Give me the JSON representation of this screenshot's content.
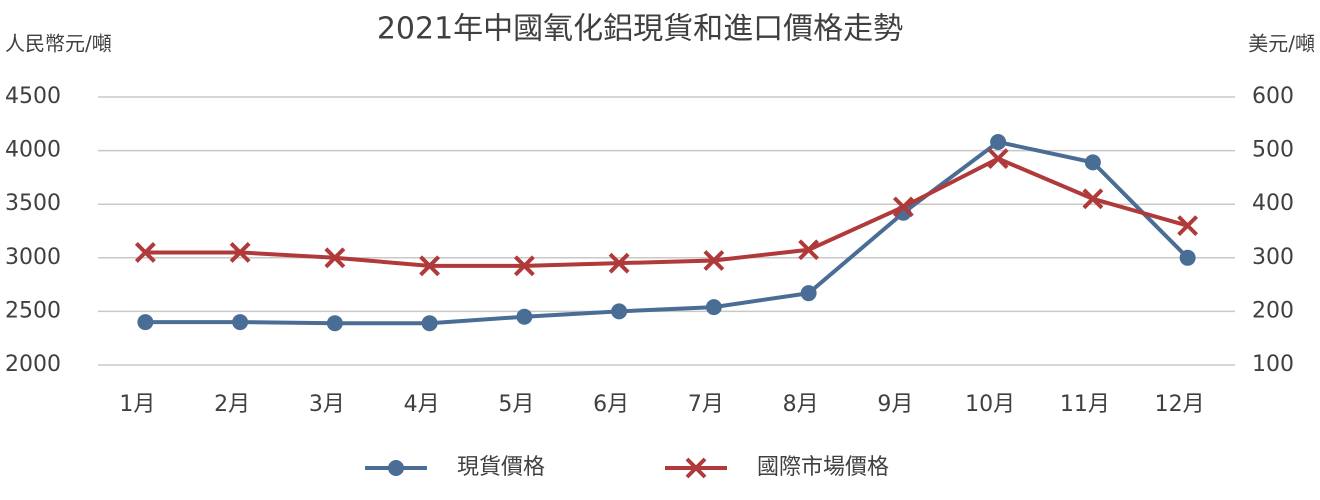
{
  "chart_data": {
    "type": "line",
    "title": "2021年中國氧化鋁現貨和進口價格走勢",
    "y_label": "人民幣元/噸",
    "y2_label": "美元/噸",
    "categories": [
      "1月",
      "2月",
      "3月",
      "4月",
      "5月",
      "6月",
      "7月",
      "8月",
      "9月",
      "10月",
      "11月",
      "12月"
    ],
    "series": [
      {
        "name": "現貨價格",
        "color": "#4a6d96",
        "marker": "circle",
        "values": [
          2400,
          2400,
          2390,
          2390,
          2450,
          2500,
          2540,
          2670,
          3420,
          4080,
          3890,
          3000
        ]
      },
      {
        "name": "國際市場價格",
        "color": "#b0393a",
        "marker": "x",
        "axis": "y2",
        "values": [
          310,
          310,
          300,
          285,
          285,
          290,
          295,
          315,
          395,
          485,
          410,
          360
        ]
      }
    ],
    "ylim": [
      2000,
      4500
    ],
    "yticks": [
      2000,
      2500,
      3000,
      3500,
      4000,
      4500
    ],
    "y2lim": [
      100,
      600
    ],
    "y2ticks": [
      100,
      200,
      300,
      400,
      500,
      600
    ],
    "grid": true,
    "legend": "bottom"
  }
}
